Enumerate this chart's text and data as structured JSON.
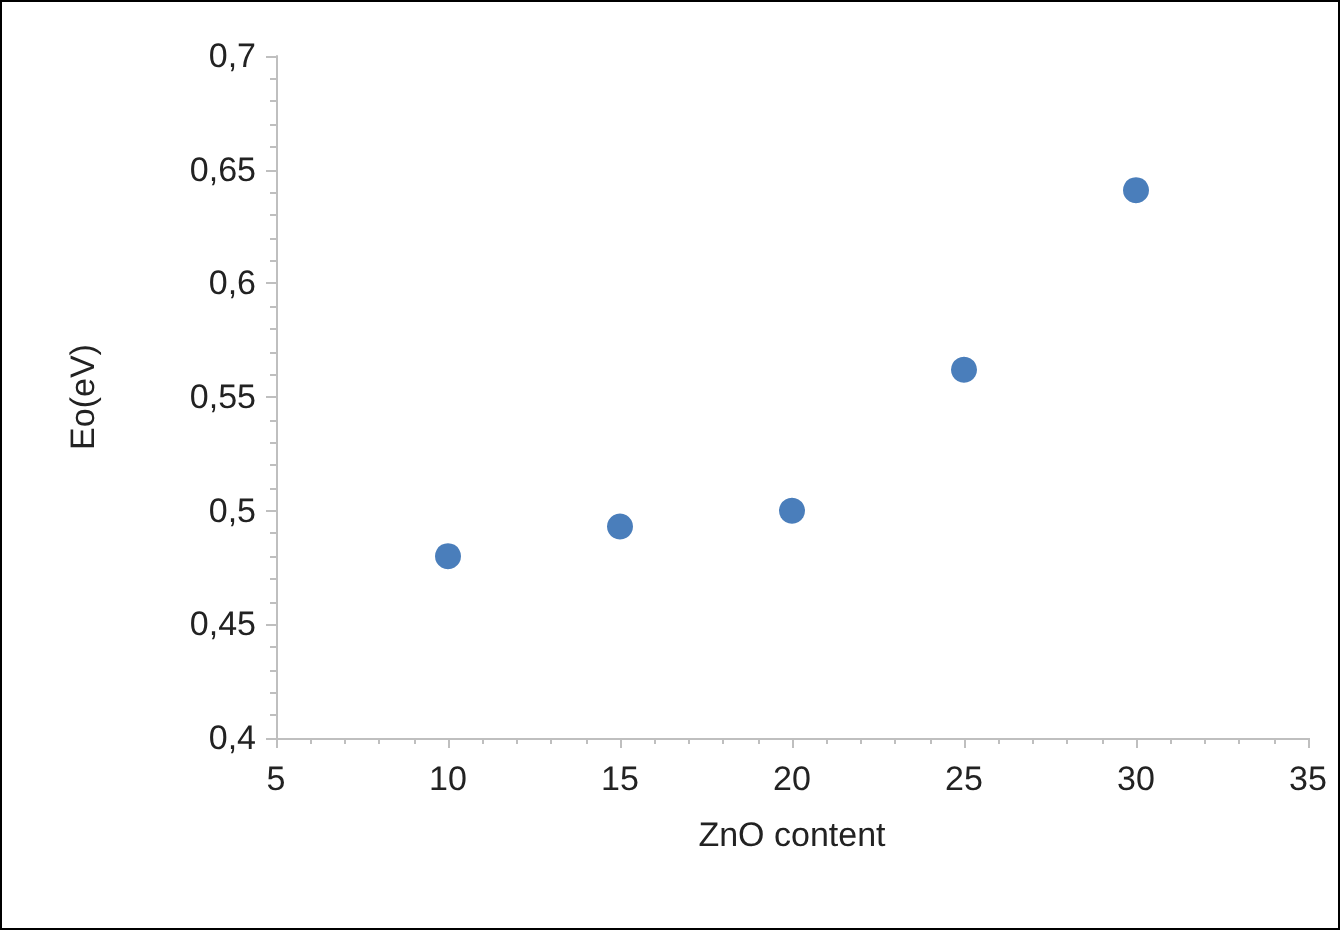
{
  "chart_data": {
    "type": "scatter",
    "xlabel": "ZnO content",
    "ylabel": "Eo(eV)",
    "x": [
      10,
      15,
      20,
      25,
      30
    ],
    "series": [
      {
        "color": "#4a7ebb",
        "values": [
          0.48,
          0.493,
          0.5,
          0.562,
          0.641
        ]
      }
    ],
    "xlim": [
      5,
      35
    ],
    "xticks": [
      5,
      10,
      15,
      20,
      25,
      30,
      35
    ],
    "ylim": [
      0.4,
      0.7
    ],
    "yticks": [
      {
        "value": 0.4,
        "label": "0,4"
      },
      {
        "value": 0.45,
        "label": "0,45"
      },
      {
        "value": 0.5,
        "label": "0,5"
      },
      {
        "value": 0.55,
        "label": "0,55"
      },
      {
        "value": 0.6,
        "label": "0,6"
      },
      {
        "value": 0.65,
        "label": "0,65"
      },
      {
        "value": 0.7,
        "label": "0,7"
      }
    ],
    "grid": false,
    "marker": "circle"
  }
}
